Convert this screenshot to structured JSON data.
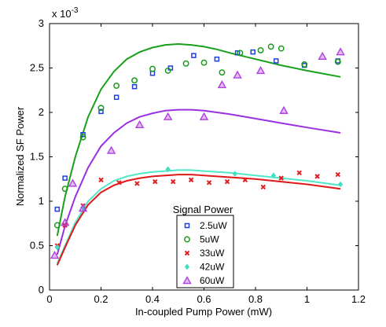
{
  "chart_data": {
    "type": "scatter",
    "xlabel": "In-coupled Pump Power (mW)",
    "ylabel": "Normalized SF Power",
    "y_multiplier": "x 10",
    "y_multiplier_exp": "-3",
    "xlim": [
      0,
      1.2
    ],
    "ylim": [
      0,
      3
    ],
    "xticks": [
      "0",
      "0.2",
      "0.4",
      "0.6",
      "0.8",
      "1",
      "1.2"
    ],
    "yticks": [
      "0",
      "0.5",
      "1",
      "1.5",
      "2",
      "2.5",
      "3"
    ],
    "xtick_values": [
      0,
      0.2,
      0.4,
      0.6,
      0.8,
      1.0,
      1.2
    ],
    "ytick_values": [
      0,
      0.5,
      1.0,
      1.5,
      2.0,
      2.5,
      3.0
    ],
    "legend": {
      "title": "Signal Power",
      "placement": "bottom-center"
    },
    "series": [
      {
        "name": "2.5uW",
        "marker": "square",
        "color": "#1f3fe0",
        "x": [
          0.03,
          0.06,
          0.13,
          0.2,
          0.26,
          0.33,
          0.4,
          0.47,
          0.56,
          0.65,
          0.73,
          0.79,
          0.88,
          0.99,
          1.12
        ],
        "y": [
          0.91,
          1.26,
          1.75,
          2.01,
          2.17,
          2.29,
          2.44,
          2.5,
          2.64,
          2.6,
          2.67,
          2.68,
          2.58,
          2.53,
          2.58
        ]
      },
      {
        "name": "5uW",
        "marker": "circle",
        "color": "#1a9a1a",
        "x": [
          0.03,
          0.06,
          0.13,
          0.2,
          0.26,
          0.33,
          0.4,
          0.46,
          0.53,
          0.6,
          0.67,
          0.74,
          0.82,
          0.86,
          0.9,
          0.99,
          1.12
        ],
        "y": [
          0.73,
          1.14,
          1.72,
          2.05,
          2.3,
          2.36,
          2.49,
          2.47,
          2.55,
          2.56,
          2.45,
          2.67,
          2.7,
          2.74,
          2.72,
          2.54,
          2.57
        ]
      },
      {
        "name": "33uW",
        "marker": "cross",
        "color": "#e02020",
        "x": [
          0.03,
          0.06,
          0.13,
          0.2,
          0.27,
          0.34,
          0.41,
          0.48,
          0.55,
          0.62,
          0.69,
          0.76,
          0.83,
          0.9,
          0.97,
          1.04,
          1.12
        ],
        "y": [
          0.5,
          0.73,
          0.95,
          1.24,
          1.21,
          1.2,
          1.22,
          1.22,
          1.24,
          1.21,
          1.22,
          1.24,
          1.16,
          1.26,
          1.32,
          1.28,
          1.3
        ]
      },
      {
        "name": "42uW",
        "marker": "diamond",
        "color": "#40e0c0",
        "x": [
          0.03,
          0.13,
          0.46,
          0.72,
          0.87,
          1.13
        ],
        "y": [
          0.48,
          0.93,
          1.36,
          1.31,
          1.29,
          1.19
        ]
      },
      {
        "name": "60uW",
        "marker": "triangle",
        "color": "#b040e0",
        "x": [
          0.02,
          0.06,
          0.09,
          0.13,
          0.24,
          0.35,
          0.46,
          0.6,
          0.67,
          0.73,
          0.82,
          0.91,
          1.06,
          1.13
        ],
        "y": [
          0.39,
          0.76,
          1.2,
          0.92,
          1.57,
          1.86,
          1.95,
          1.95,
          2.31,
          2.42,
          2.47,
          2.02,
          2.63,
          2.68
        ]
      }
    ],
    "fits": [
      {
        "color": "#18a018",
        "x": [
          0.03,
          0.06,
          0.1,
          0.15,
          0.2,
          0.25,
          0.3,
          0.35,
          0.4,
          0.45,
          0.5,
          0.55,
          0.6,
          0.65,
          0.7,
          0.8,
          0.9,
          1.0,
          1.13
        ],
        "y": [
          0.61,
          1.05,
          1.5,
          1.95,
          2.26,
          2.46,
          2.6,
          2.68,
          2.73,
          2.76,
          2.77,
          2.76,
          2.74,
          2.71,
          2.67,
          2.6,
          2.53,
          2.47,
          2.4
        ]
      },
      {
        "color": "#9a30e0",
        "x": [
          0.03,
          0.06,
          0.1,
          0.15,
          0.2,
          0.25,
          0.3,
          0.35,
          0.4,
          0.45,
          0.5,
          0.55,
          0.6,
          0.65,
          0.7,
          0.8,
          0.9,
          1.0,
          1.13
        ],
        "y": [
          0.4,
          0.72,
          1.05,
          1.38,
          1.62,
          1.77,
          1.88,
          1.95,
          1.99,
          2.02,
          2.03,
          2.03,
          2.02,
          2.0,
          1.98,
          1.93,
          1.88,
          1.83,
          1.77
        ]
      },
      {
        "color": "#50e8c8",
        "x": [
          0.03,
          0.06,
          0.1,
          0.15,
          0.2,
          0.25,
          0.3,
          0.35,
          0.4,
          0.45,
          0.5,
          0.55,
          0.6,
          0.65,
          0.7,
          0.8,
          0.9,
          1.0,
          1.13
        ],
        "y": [
          0.3,
          0.5,
          0.76,
          1.0,
          1.14,
          1.23,
          1.28,
          1.31,
          1.33,
          1.34,
          1.35,
          1.35,
          1.34,
          1.33,
          1.32,
          1.29,
          1.26,
          1.23,
          1.18
        ]
      },
      {
        "color": "#e01818",
        "x": [
          0.03,
          0.06,
          0.1,
          0.15,
          0.2,
          0.25,
          0.3,
          0.35,
          0.4,
          0.45,
          0.5,
          0.55,
          0.6,
          0.65,
          0.7,
          0.8,
          0.9,
          1.0,
          1.13
        ],
        "y": [
          0.28,
          0.48,
          0.73,
          0.96,
          1.1,
          1.18,
          1.23,
          1.26,
          1.28,
          1.29,
          1.3,
          1.3,
          1.29,
          1.28,
          1.27,
          1.25,
          1.22,
          1.19,
          1.14
        ]
      }
    ]
  }
}
